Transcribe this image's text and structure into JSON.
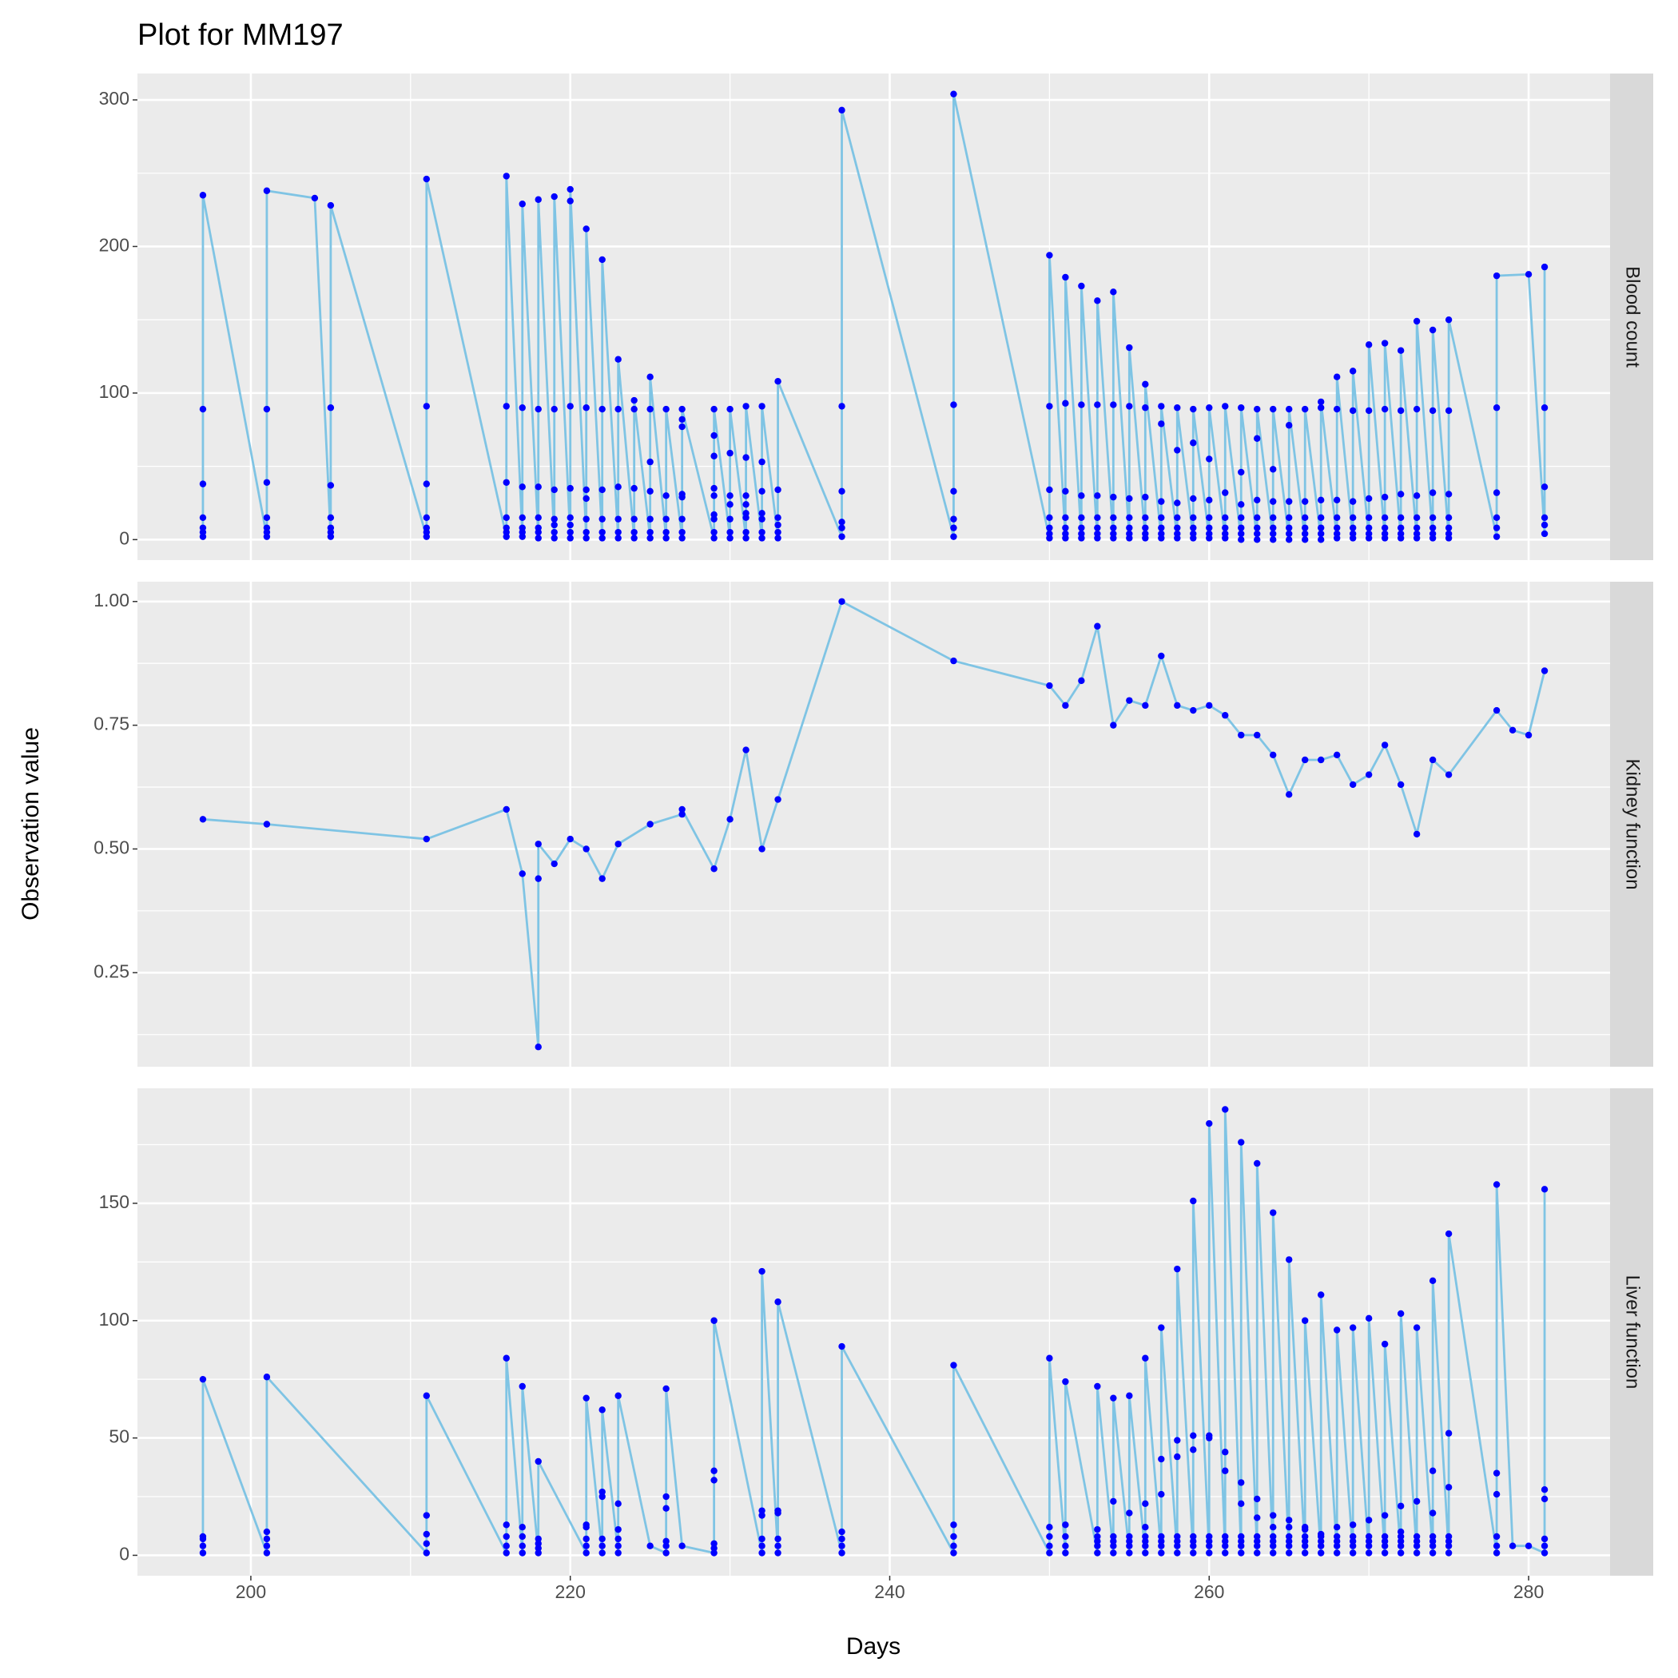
{
  "title": "Plot for MM197",
  "x_label": "Days",
  "y_label": "Observation value",
  "xlim": [
    192.9,
    285.1
  ],
  "xticks": [
    200,
    220,
    240,
    260,
    280
  ],
  "line_color": "#7FC4E4",
  "point_color": "#0000FF",
  "chart_data": [
    {
      "type": "line",
      "facet": "Blood count",
      "ylim": [
        -14,
        318
      ],
      "yticks": [
        0,
        100,
        200,
        300
      ],
      "grid": true,
      "x": [
        197,
        201,
        204,
        205,
        211,
        216,
        217,
        218,
        219,
        220,
        221,
        222,
        223,
        224,
        225,
        226,
        227,
        229,
        230,
        231,
        232,
        233,
        237,
        244,
        250,
        251,
        252,
        253,
        254,
        255,
        256,
        257,
        258,
        259,
        260,
        261,
        262,
        263,
        264,
        265,
        266,
        267,
        268,
        269,
        270,
        271,
        272,
        273,
        274,
        275,
        278,
        280,
        281
      ],
      "values": [
        [
          2,
          5,
          8,
          15,
          38,
          89,
          235
        ],
        [
          2,
          5,
          8,
          15,
          39,
          89,
          238
        ],
        [
          233
        ],
        [
          2,
          5,
          8,
          15,
          37,
          90,
          228
        ],
        [
          2,
          5,
          8,
          15,
          38,
          91,
          246
        ],
        [
          2,
          5,
          8,
          15,
          39,
          91,
          248
        ],
        [
          2,
          5,
          8,
          15,
          36,
          90,
          229
        ],
        [
          1,
          5,
          8,
          15,
          36,
          89,
          232
        ],
        [
          1,
          5,
          10,
          14,
          34,
          89,
          234
        ],
        [
          1,
          5,
          10,
          15,
          35,
          91,
          231,
          239
        ],
        [
          1,
          5,
          14,
          28,
          34,
          90,
          212
        ],
        [
          1,
          5,
          14,
          34,
          89,
          191
        ],
        [
          1,
          5,
          14,
          36,
          89,
          123
        ],
        [
          1,
          5,
          14,
          35,
          89,
          95
        ],
        [
          1,
          5,
          14,
          33,
          53,
          89,
          111
        ],
        [
          1,
          5,
          14,
          30,
          89
        ],
        [
          1,
          5,
          14,
          29,
          31,
          77,
          82,
          89
        ],
        [
          1,
          5,
          14,
          17,
          30,
          35,
          57,
          71,
          89
        ],
        [
          1,
          5,
          14,
          24,
          30,
          59,
          89
        ],
        [
          1,
          5,
          15,
          18,
          24,
          30,
          56,
          91
        ],
        [
          1,
          5,
          14,
          18,
          33,
          53,
          91
        ],
        [
          1,
          5,
          10,
          15,
          34,
          108
        ],
        [
          2,
          8,
          12,
          33,
          91,
          293
        ],
        [
          2,
          8,
          14,
          33,
          92,
          304
        ],
        [
          1,
          4,
          8,
          15,
          34,
          91,
          194
        ],
        [
          1,
          4,
          8,
          15,
          33,
          93,
          179
        ],
        [
          1,
          4,
          8,
          15,
          30,
          92,
          173
        ],
        [
          1,
          4,
          8,
          15,
          30,
          92,
          163
        ],
        [
          1,
          4,
          8,
          15,
          29,
          92,
          169
        ],
        [
          1,
          4,
          8,
          15,
          28,
          91,
          131
        ],
        [
          1,
          4,
          8,
          15,
          29,
          90,
          106
        ],
        [
          1,
          4,
          8,
          15,
          26,
          79,
          91
        ],
        [
          1,
          4,
          8,
          15,
          25,
          61,
          90
        ],
        [
          1,
          4,
          8,
          15,
          28,
          66,
          89
        ],
        [
          1,
          4,
          8,
          15,
          27,
          55,
          90
        ],
        [
          1,
          4,
          8,
          15,
          32,
          91
        ],
        [
          0,
          4,
          8,
          15,
          24,
          46,
          90
        ],
        [
          0,
          4,
          8,
          15,
          27,
          69,
          89
        ],
        [
          0,
          4,
          8,
          15,
          26,
          48,
          89
        ],
        [
          0,
          4,
          8,
          15,
          26,
          78,
          89
        ],
        [
          0,
          4,
          8,
          15,
          26,
          89
        ],
        [
          0,
          4,
          8,
          15,
          27,
          90,
          94
        ],
        [
          1,
          4,
          8,
          15,
          27,
          89,
          111
        ],
        [
          1,
          4,
          8,
          15,
          26,
          88,
          115
        ],
        [
          1,
          4,
          8,
          15,
          28,
          88,
          133
        ],
        [
          1,
          4,
          8,
          15,
          29,
          89,
          134
        ],
        [
          1,
          4,
          8,
          15,
          31,
          88,
          129
        ],
        [
          1,
          4,
          8,
          15,
          30,
          89,
          149
        ],
        [
          1,
          4,
          8,
          15,
          32,
          88,
          143
        ],
        [
          1,
          4,
          8,
          15,
          31,
          88,
          150
        ],
        [
          2,
          8,
          15,
          32,
          90,
          180
        ],
        [
          181
        ],
        [
          4,
          10,
          15,
          36,
          90,
          186
        ]
      ]
    },
    {
      "type": "line",
      "facet": "Kidney function",
      "ylim": [
        0.06,
        1.04
      ],
      "yticks": [
        0.25,
        {
          "value": 0.5,
          "label": "0.50"
        },
        0.75,
        {
          "value": 1,
          "label": "1.00"
        }
      ],
      "grid": true,
      "x": [
        197,
        201,
        211,
        216,
        217,
        218,
        219,
        220,
        221,
        222,
        223,
        225,
        227,
        229,
        230,
        231,
        232,
        233,
        237,
        244,
        250,
        251,
        252,
        253,
        254,
        255,
        256,
        257,
        258,
        259,
        260,
        261,
        262,
        263,
        264,
        265,
        266,
        267,
        268,
        269,
        270,
        271,
        272,
        273,
        274,
        275,
        278,
        279,
        280,
        281
      ],
      "values": [
        [
          0.56
        ],
        [
          0.55
        ],
        [
          0.52
        ],
        [
          0.58
        ],
        [
          0.45
        ],
        [
          0.1,
          0.44,
          0.51
        ],
        [
          0.47
        ],
        [
          0.52
        ],
        [
          0.5
        ],
        [
          0.44
        ],
        [
          0.51
        ],
        [
          0.55
        ],
        [
          0.57,
          0.58
        ],
        [
          0.46
        ],
        [
          0.56
        ],
        [
          0.7
        ],
        [
          0.5
        ],
        [
          0.6
        ],
        [
          1.0
        ],
        [
          0.88
        ],
        [
          0.83
        ],
        [
          0.79
        ],
        [
          0.84
        ],
        [
          0.95
        ],
        [
          0.75
        ],
        [
          0.8
        ],
        [
          0.79
        ],
        [
          0.89
        ],
        [
          0.79
        ],
        [
          0.78
        ],
        [
          0.79
        ],
        [
          0.77
        ],
        [
          0.73
        ],
        [
          0.73
        ],
        [
          0.69
        ],
        [
          0.61
        ],
        [
          0.68
        ],
        [
          0.68
        ],
        [
          0.69
        ],
        [
          0.63
        ],
        [
          0.65
        ],
        [
          0.71
        ],
        [
          0.63
        ],
        [
          0.53
        ],
        [
          0.68
        ],
        [
          0.65
        ],
        [
          0.78
        ],
        [
          0.74
        ],
        [
          0.73
        ],
        [
          0.86
        ]
      ]
    },
    {
      "type": "line",
      "facet": "Liver function",
      "ylim": [
        -8.7,
        199
      ],
      "yticks": [
        0,
        50,
        100,
        150
      ],
      "grid": true,
      "x": [
        197,
        201,
        211,
        216,
        217,
        218,
        221,
        222,
        223,
        225,
        226,
        227,
        229,
        232,
        233,
        237,
        244,
        250,
        251,
        253,
        254,
        255,
        256,
        257,
        258,
        259,
        260,
        261,
        262,
        263,
        264,
        265,
        266,
        267,
        268,
        269,
        270,
        271,
        272,
        273,
        274,
        275,
        278,
        279,
        280,
        281
      ],
      "values": [
        [
          1,
          4,
          7,
          8,
          75
        ],
        [
          1,
          4,
          7,
          10,
          76
        ],
        [
          1,
          5,
          9,
          17,
          68
        ],
        [
          1,
          4,
          8,
          13,
          84
        ],
        [
          1,
          4,
          8,
          12,
          72
        ],
        [
          1,
          3,
          5,
          7,
          40
        ],
        [
          1,
          4,
          7,
          12,
          13,
          67
        ],
        [
          1,
          4,
          7,
          25,
          27,
          62
        ],
        [
          1,
          4,
          7,
          11,
          22,
          68
        ],
        [
          4
        ],
        [
          1,
          4,
          6,
          20,
          25,
          71
        ],
        [
          4
        ],
        [
          1,
          3,
          5,
          32,
          36,
          100
        ],
        [
          1,
          4,
          7,
          17,
          19,
          121
        ],
        [
          1,
          4,
          7,
          18,
          19,
          108
        ],
        [
          1,
          4,
          7,
          10,
          89
        ],
        [
          1,
          4,
          8,
          13,
          81
        ],
        [
          1,
          4,
          8,
          12,
          84
        ],
        [
          1,
          4,
          8,
          13,
          74
        ],
        [
          1,
          4,
          6,
          8,
          11,
          72
        ],
        [
          1,
          4,
          6,
          8,
          23,
          67
        ],
        [
          1,
          4,
          6,
          8,
          18,
          68
        ],
        [
          1,
          4,
          6,
          8,
          12,
          22,
          84
        ],
        [
          1,
          4,
          6,
          8,
          26,
          41,
          97
        ],
        [
          1,
          4,
          6,
          8,
          42,
          49,
          122
        ],
        [
          1,
          4,
          6,
          8,
          45,
          51,
          151
        ],
        [
          1,
          4,
          6,
          8,
          50,
          51,
          184
        ],
        [
          1,
          4,
          6,
          8,
          36,
          44,
          190
        ],
        [
          1,
          4,
          6,
          8,
          22,
          31,
          176
        ],
        [
          1,
          4,
          6,
          8,
          16,
          24,
          167
        ],
        [
          1,
          4,
          6,
          8,
          12,
          17,
          146
        ],
        [
          1,
          4,
          6,
          8,
          12,
          15,
          126
        ],
        [
          1,
          4,
          6,
          8,
          11,
          12,
          100
        ],
        [
          1,
          4,
          6,
          8,
          9,
          111
        ],
        [
          1,
          4,
          6,
          8,
          12,
          96
        ],
        [
          1,
          4,
          6,
          8,
          13,
          97
        ],
        [
          1,
          4,
          6,
          8,
          15,
          101
        ],
        [
          1,
          4,
          6,
          8,
          17,
          90
        ],
        [
          1,
          4,
          6,
          8,
          10,
          21,
          103
        ],
        [
          1,
          4,
          6,
          8,
          23,
          97
        ],
        [
          1,
          4,
          6,
          8,
          18,
          36,
          117
        ],
        [
          1,
          4,
          6,
          8,
          29,
          52,
          137
        ],
        [
          1,
          4,
          8,
          26,
          35,
          158
        ],
        [
          4
        ],
        [
          4
        ],
        [
          1,
          4,
          7,
          24,
          28,
          156
        ]
      ]
    }
  ]
}
